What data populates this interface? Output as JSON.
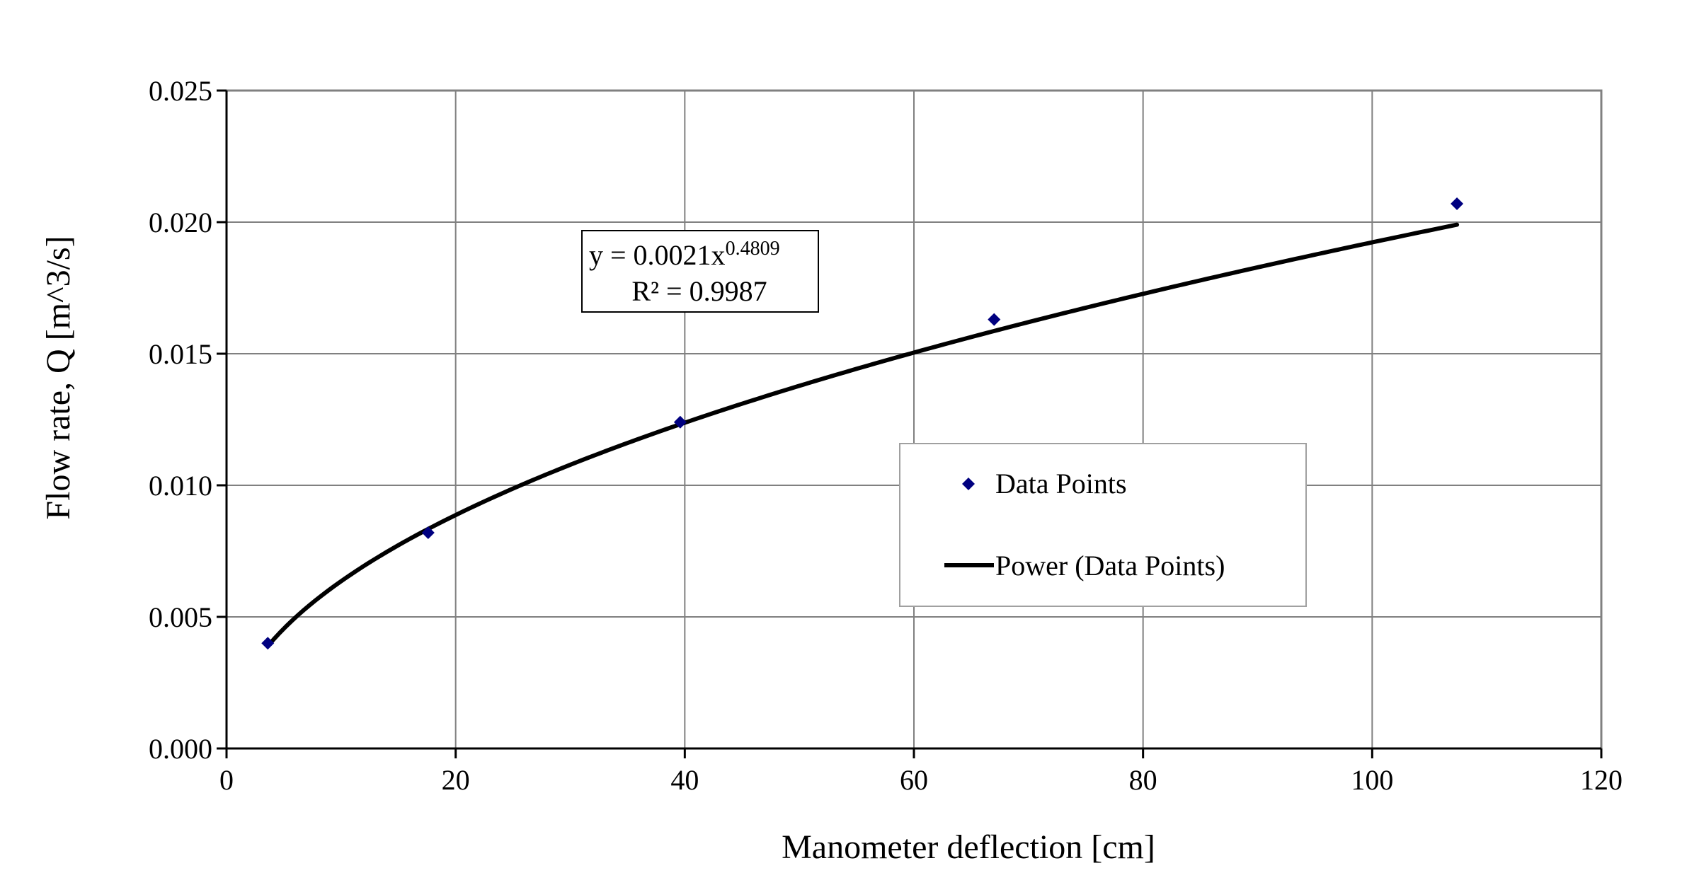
{
  "chart_data": {
    "type": "scatter",
    "title": "",
    "xlabel": "Manometer deflection [cm]",
    "ylabel": "Flow rate, Q [m^3/s]",
    "xlim": [
      0,
      120
    ],
    "ylim": [
      0,
      0.025
    ],
    "x_ticks": [
      "0",
      "20",
      "40",
      "60",
      "80",
      "100",
      "120"
    ],
    "y_ticks": [
      "0.000",
      "0.005",
      "0.010",
      "0.015",
      "0.020",
      "0.025"
    ],
    "grid": true,
    "legend_position": "center-right",
    "series": [
      {
        "name": "Data Points",
        "kind": "scatter",
        "marker": "diamond",
        "color": "#000080",
        "points": [
          {
            "x": 3.6,
            "y": 0.004
          },
          {
            "x": 17.6,
            "y": 0.0082
          },
          {
            "x": 39.6,
            "y": 0.0124
          },
          {
            "x": 67.0,
            "y": 0.0163
          },
          {
            "x": 107.4,
            "y": 0.0207
          }
        ]
      },
      {
        "name": "Power (Data Points)",
        "kind": "trendline",
        "color": "#000000",
        "equation": "y = 0.0021x^0.4809",
        "coefficient": 0.0021,
        "exponent": 0.4809,
        "x_range": [
          3.6,
          107.4
        ]
      }
    ],
    "annotation": {
      "equation_prefix": "y = 0.0021x",
      "equation_exponent": "0.4809",
      "r_squared": "R² = 0.9987"
    }
  }
}
